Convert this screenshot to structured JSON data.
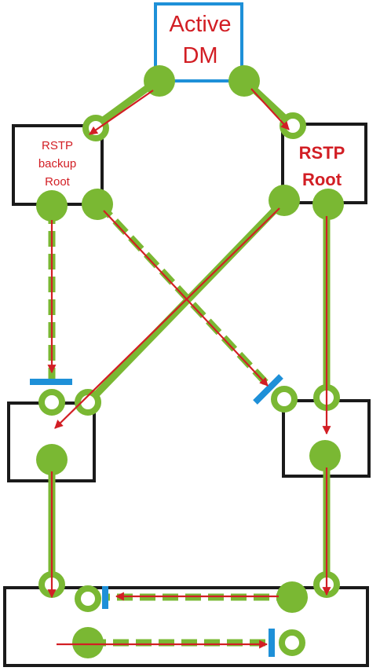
{
  "colors": {
    "background": "#ffffff",
    "link_green": "#7ab833",
    "arrow_red": "#d21e24",
    "dm_border_blue": "#1e90d8",
    "switch_border": "#1a1a1a",
    "blocked_blue": "#1e90d8"
  },
  "nodes": {
    "active_dm": {
      "line1": "Active",
      "line2": "DM"
    },
    "rstp_backup_root": {
      "line1": "RSTP",
      "line2": "backup",
      "line3": "Root"
    },
    "rstp_root": {
      "line1": "RSTP",
      "line2": "Root"
    },
    "switch_mid_left": {},
    "switch_mid_right": {},
    "switch_bottom": {}
  },
  "links": [
    {
      "id": "dm-to-backup",
      "from": "active_dm",
      "to": "rstp_backup_root",
      "state": "forwarding"
    },
    {
      "id": "dm-to-root",
      "from": "active_dm",
      "to": "rstp_root",
      "state": "forwarding"
    },
    {
      "id": "backup-to-midleft",
      "from": "rstp_backup_root",
      "to": "switch_mid_left",
      "state": "blocked"
    },
    {
      "id": "backup-to-midright",
      "from": "rstp_backup_root",
      "to": "switch_mid_right",
      "state": "blocked"
    },
    {
      "id": "root-to-midleft",
      "from": "rstp_root",
      "to": "switch_mid_left",
      "state": "forwarding"
    },
    {
      "id": "root-to-midright",
      "from": "rstp_root",
      "to": "switch_mid_right",
      "state": "forwarding"
    },
    {
      "id": "midleft-to-bottom",
      "from": "switch_mid_left",
      "to": "switch_bottom",
      "state": "forwarding"
    },
    {
      "id": "midright-to-bottom",
      "from": "switch_mid_right",
      "to": "switch_bottom",
      "state": "forwarding"
    },
    {
      "id": "bottom-internal-upper",
      "from": "switch_bottom",
      "to": "switch_bottom",
      "state": "blocked"
    },
    {
      "id": "bottom-internal-lower",
      "from": "switch_bottom",
      "to": "switch_bottom",
      "state": "blocked"
    }
  ]
}
